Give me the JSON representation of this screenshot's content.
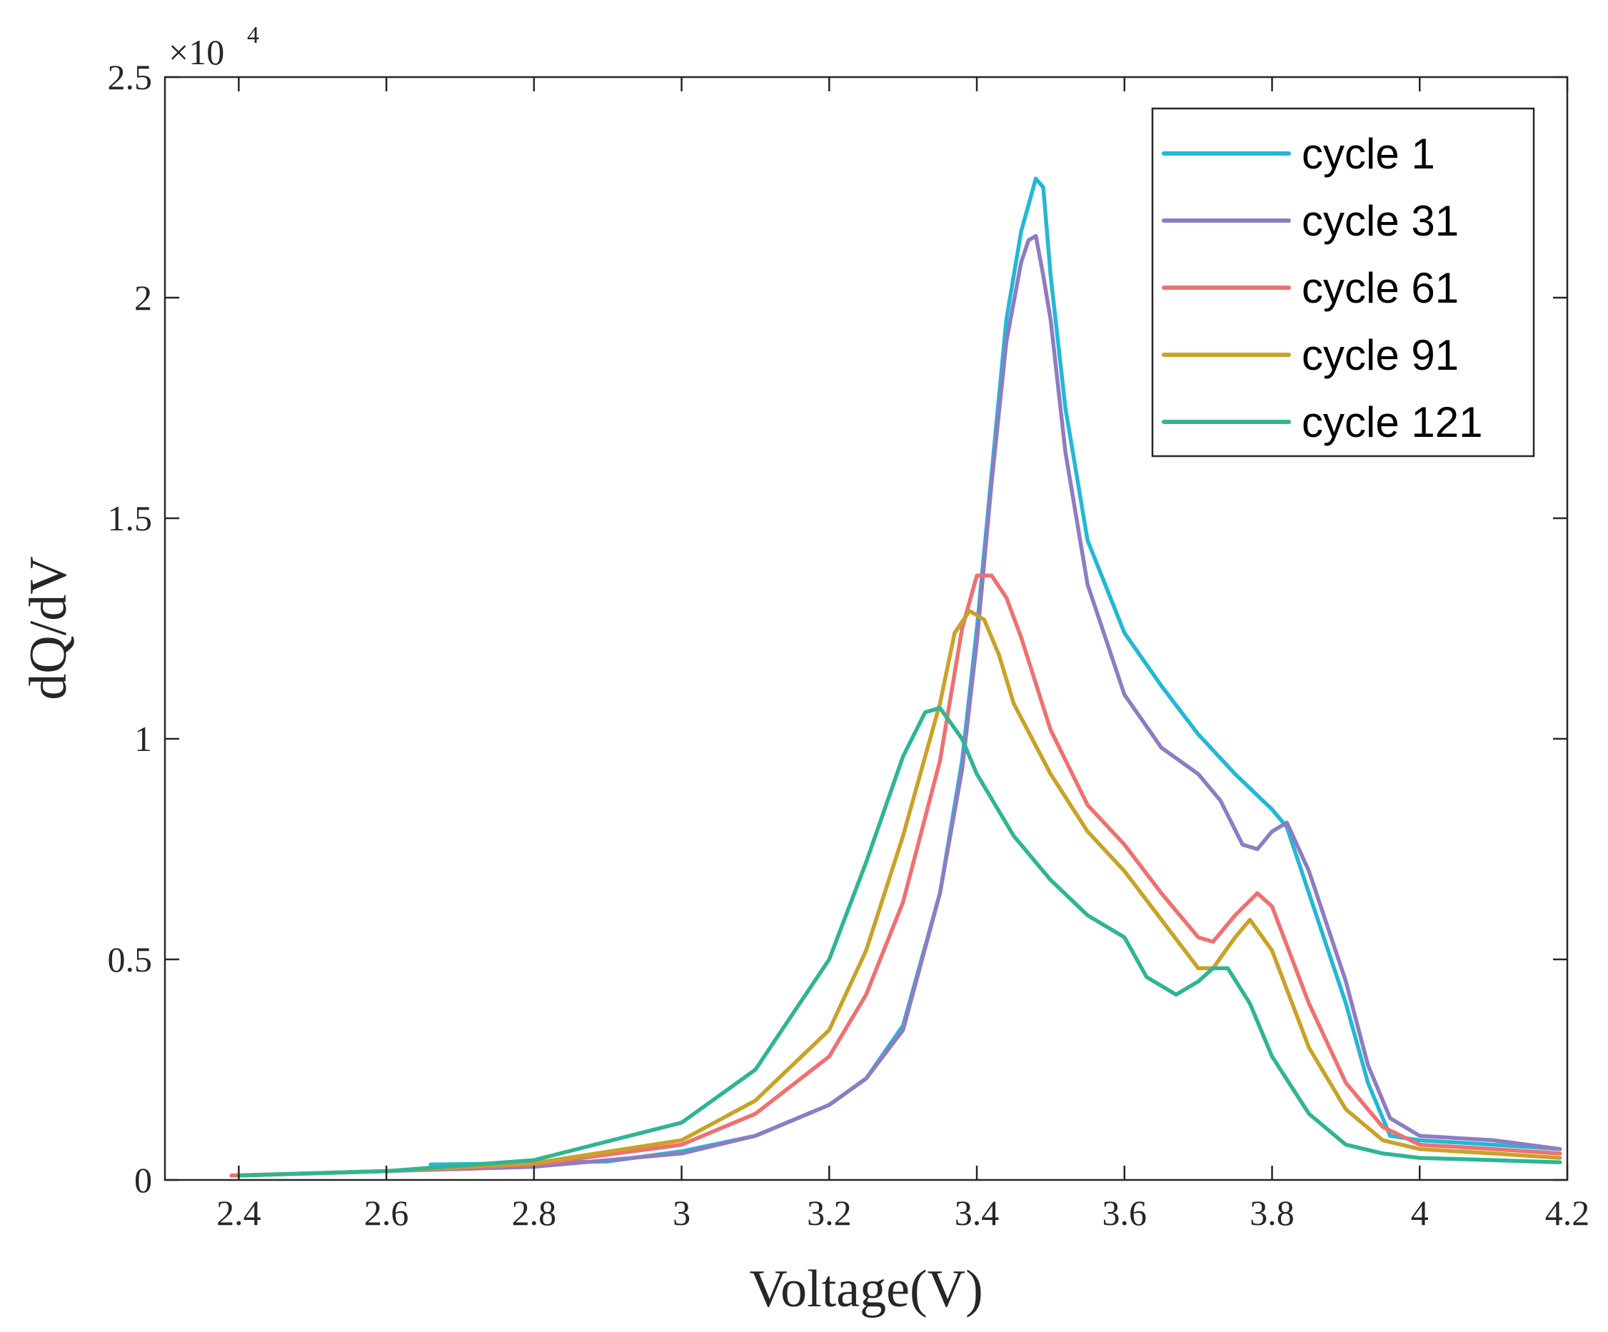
{
  "chart_data": {
    "type": "line",
    "title": "",
    "xlabel": "Voltage(V)",
    "ylabel": "dQ/dV",
    "xlim": [
      2.3,
      4.2
    ],
    "ylim": [
      0,
      25000
    ],
    "x_ticks": [
      2.4,
      2.6,
      2.8,
      3.0,
      3.2,
      3.4,
      3.6,
      3.8,
      4.0,
      4.2
    ],
    "x_tick_labels": [
      "2.4",
      "2.6",
      "2.8",
      "3",
      "3.2",
      "3.4",
      "3.6",
      "3.8",
      "4",
      "4.2"
    ],
    "y_ticks": [
      0,
      5000,
      10000,
      15000,
      20000,
      25000
    ],
    "y_tick_labels": [
      "0",
      "0.5",
      "1",
      "1.5",
      "2",
      "2.5"
    ],
    "y_exponent": {
      "base": "×10",
      "power": "4"
    },
    "grid": false,
    "legend_position": "top-right",
    "series": [
      {
        "name": "cycle 1",
        "color": "#22B8D6",
        "x": [
          2.66,
          2.8,
          2.9,
          3.0,
          3.1,
          3.2,
          3.25,
          3.3,
          3.35,
          3.38,
          3.4,
          3.42,
          3.44,
          3.46,
          3.48,
          3.49,
          3.5,
          3.52,
          3.55,
          3.6,
          3.65,
          3.7,
          3.75,
          3.8,
          3.82,
          3.85,
          3.9,
          3.93,
          3.96,
          4.0,
          4.1,
          4.19
        ],
        "y": [
          350,
          380,
          420,
          650,
          1000,
          1700,
          2300,
          3500,
          6500,
          9500,
          12500,
          16000,
          19500,
          21500,
          22700,
          22500,
          20500,
          17500,
          14500,
          12400,
          11200,
          10100,
          9200,
          8400,
          8000,
          6500,
          4000,
          2200,
          1000,
          900,
          800,
          700
        ]
      },
      {
        "name": "cycle 31",
        "color": "#8E7CC3",
        "x": [
          2.4,
          2.6,
          2.8,
          3.0,
          3.1,
          3.2,
          3.25,
          3.3,
          3.35,
          3.38,
          3.4,
          3.42,
          3.44,
          3.46,
          3.47,
          3.48,
          3.49,
          3.5,
          3.52,
          3.55,
          3.6,
          3.65,
          3.7,
          3.73,
          3.76,
          3.78,
          3.8,
          3.82,
          3.85,
          3.9,
          3.93,
          3.96,
          4.0,
          4.1,
          4.19
        ],
        "y": [
          100,
          200,
          300,
          600,
          1000,
          1700,
          2300,
          3400,
          6500,
          9300,
          12200,
          15800,
          19000,
          20800,
          21300,
          21400,
          20500,
          19500,
          16500,
          13500,
          11000,
          9800,
          9200,
          8600,
          7600,
          7500,
          7900,
          8100,
          7000,
          4500,
          2600,
          1400,
          1000,
          900,
          700
        ]
      },
      {
        "name": "cycle 61",
        "color": "#F07070",
        "x": [
          2.39,
          2.6,
          2.8,
          3.0,
          3.1,
          3.2,
          3.25,
          3.3,
          3.35,
          3.38,
          3.4,
          3.42,
          3.44,
          3.46,
          3.5,
          3.55,
          3.6,
          3.65,
          3.7,
          3.72,
          3.75,
          3.78,
          3.8,
          3.85,
          3.9,
          3.95,
          4.0,
          4.1,
          4.19
        ],
        "y": [
          100,
          200,
          350,
          800,
          1500,
          2800,
          4200,
          6300,
          9500,
          12500,
          13700,
          13700,
          13200,
          12300,
          10200,
          8500,
          7600,
          6500,
          5500,
          5400,
          6000,
          6500,
          6200,
          4000,
          2200,
          1200,
          800,
          700,
          600
        ]
      },
      {
        "name": "cycle 91",
        "color": "#C9A227",
        "x": [
          2.4,
          2.6,
          2.8,
          3.0,
          3.1,
          3.2,
          3.25,
          3.3,
          3.35,
          3.37,
          3.39,
          3.41,
          3.43,
          3.45,
          3.5,
          3.55,
          3.6,
          3.65,
          3.7,
          3.72,
          3.75,
          3.77,
          3.8,
          3.85,
          3.9,
          3.95,
          4.0,
          4.1,
          4.19
        ],
        "y": [
          100,
          200,
          380,
          900,
          1800,
          3400,
          5200,
          7800,
          10800,
          12400,
          12900,
          12700,
          11900,
          10800,
          9200,
          7900,
          7000,
          5900,
          4800,
          4800,
          5500,
          5900,
          5200,
          3000,
          1600,
          900,
          700,
          600,
          500
        ]
      },
      {
        "name": "cycle 121",
        "color": "#2FB593",
        "x": [
          2.4,
          2.6,
          2.8,
          3.0,
          3.1,
          3.2,
          3.25,
          3.3,
          3.33,
          3.35,
          3.38,
          3.4,
          3.45,
          3.5,
          3.55,
          3.6,
          3.63,
          3.67,
          3.7,
          3.72,
          3.74,
          3.77,
          3.8,
          3.85,
          3.9,
          3.95,
          4.0,
          4.1,
          4.19
        ],
        "y": [
          100,
          200,
          450,
          1300,
          2500,
          5000,
          7200,
          9600,
          10600,
          10700,
          10000,
          9200,
          7800,
          6800,
          6000,
          5500,
          4600,
          4200,
          4500,
          4800,
          4800,
          4000,
          2800,
          1500,
          800,
          600,
          500,
          450,
          400
        ]
      }
    ]
  }
}
